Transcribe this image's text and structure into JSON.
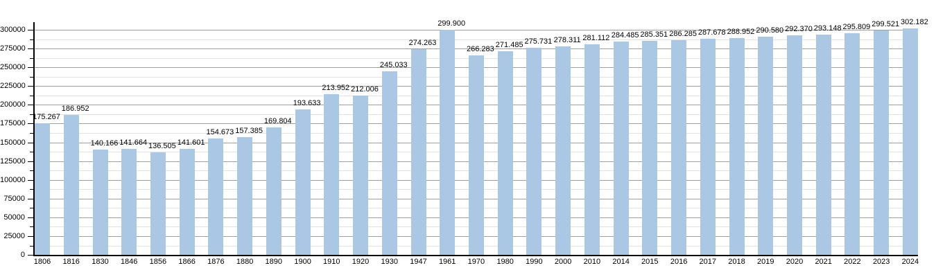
{
  "chart_data": {
    "type": "bar",
    "title": "",
    "xlabel": "",
    "ylabel": "",
    "categories": [
      "1806",
      "1816",
      "1830",
      "1846",
      "1856",
      "1866",
      "1876",
      "1880",
      "1890",
      "1900",
      "1910",
      "1920",
      "1930",
      "1947",
      "1961",
      "1970",
      "1980",
      "1990",
      "2000",
      "2010",
      "2014",
      "2015",
      "2016",
      "2017",
      "2018",
      "2019",
      "2020",
      "2021",
      "2022",
      "2023",
      "2024"
    ],
    "values": [
      175267,
      186952,
      140166,
      141664,
      136505,
      141601,
      154673,
      157385,
      169804,
      193633,
      213952,
      212006,
      245033,
      274263,
      299900,
      266283,
      271485,
      275731,
      278311,
      281112,
      284485,
      285351,
      286285,
      287678,
      288952,
      290580,
      292370,
      293148,
      295809,
      299521,
      302182
    ],
    "value_labels": [
      "175.267",
      "186.952",
      "140.166",
      "141.664",
      "136.505",
      "141.601",
      "154.673",
      "157.385",
      "169.804",
      "193.633",
      "213.952",
      "212.006",
      "245.033",
      "274.263",
      "299.900",
      "266.283",
      "271.485",
      "275.731",
      "278.311",
      "281.112",
      "284.485",
      "285.351",
      "286.285",
      "287.678",
      "288.952",
      "290.580",
      "292.370",
      "293.148",
      "295.809",
      "299.521",
      "302.182"
    ],
    "y_tick_labels": [
      "0",
      "25000",
      "50000",
      "75000",
      "100000",
      "125000",
      "150000",
      "175000",
      "200000",
      "225000",
      "250000",
      "275000",
      "300000"
    ],
    "y_tick_values": [
      0,
      25000,
      50000,
      75000,
      100000,
      125000,
      150000,
      175000,
      200000,
      225000,
      250000,
      275000,
      300000
    ],
    "y_major_step": 25000,
    "y_minor_step": 12500,
    "ylim": [
      0,
      300000
    ],
    "grid": "on",
    "legend": "none",
    "colors": {
      "bar": "#aac8e4",
      "grid_major": "#9e9e9e",
      "grid_minor": "#e2e2e2",
      "axis": "#000000",
      "text": "#000000",
      "background": "#ffffff"
    }
  }
}
